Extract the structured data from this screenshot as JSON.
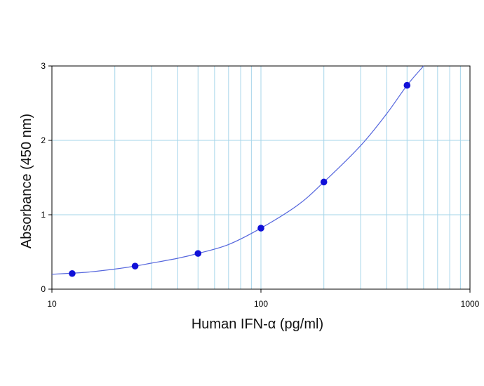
{
  "chart_data": {
    "type": "scatter",
    "title": "",
    "xlabel": "Human IFN-α (pg/ml)",
    "ylabel": "Absorbance (450 nm)",
    "xscale": "log",
    "xlim": [
      10,
      1000
    ],
    "ylim": [
      0,
      3
    ],
    "x_ticks": [
      10,
      100,
      1000
    ],
    "x_tick_labels": [
      "10",
      "100",
      "1000"
    ],
    "y_ticks": [
      0,
      1,
      2,
      3
    ],
    "y_tick_labels": [
      "0",
      "1",
      "2",
      "3"
    ],
    "grid": true,
    "legend": "none",
    "series": [
      {
        "kind": "points",
        "x": [
          12.5,
          25,
          50,
          100,
          200,
          500
        ],
        "y": [
          0.21,
          0.31,
          0.48,
          0.82,
          1.44,
          2.74
        ]
      },
      {
        "kind": "fit-curve",
        "x": [
          10,
          12.5,
          15,
          20,
          25,
          30,
          40,
          50,
          70,
          100,
          150,
          200,
          300,
          400,
          500,
          600
        ],
        "y": [
          0.2,
          0.215,
          0.23,
          0.27,
          0.31,
          0.35,
          0.415,
          0.48,
          0.6,
          0.82,
          1.13,
          1.44,
          1.93,
          2.36,
          2.74,
          3.0
        ]
      }
    ]
  },
  "colors": {
    "grid": "#a6d5ea",
    "axis": "#000000",
    "marker": "#1010d8",
    "curve": "#5566dd"
  }
}
